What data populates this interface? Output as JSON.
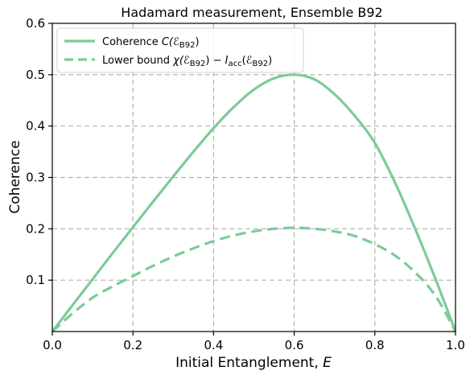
{
  "chart_data": {
    "type": "line",
    "title": "Hadamard measurement, Ensemble B92",
    "xlabel_text": "Initial Entanglement, ",
    "xlabel_var": "E",
    "ylabel": "Coherence",
    "xlim": [
      0.0,
      1.0
    ],
    "ylim": [
      0.0,
      0.6
    ],
    "x_ticks": [
      "0.0",
      "0.2",
      "0.4",
      "0.6",
      "0.8",
      "1.0"
    ],
    "y_ticks": [
      "0.1",
      "0.2",
      "0.3",
      "0.4",
      "0.5",
      "0.6"
    ],
    "grid": true,
    "legend_position": "top-left",
    "color": "#7ccb98",
    "series": [
      {
        "name": "Coherence C(ℰB92)",
        "style": "solid",
        "x": [
          0.0,
          0.05,
          0.1,
          0.15,
          0.2,
          0.25,
          0.3,
          0.35,
          0.4,
          0.45,
          0.5,
          0.55,
          0.6,
          0.65,
          0.7,
          0.75,
          0.8,
          0.85,
          0.9,
          0.95,
          1.0
        ],
        "y": [
          0.0,
          0.051,
          0.102,
          0.153,
          0.203,
          0.253,
          0.302,
          0.35,
          0.396,
          0.437,
          0.471,
          0.493,
          0.5,
          0.491,
          0.462,
          0.42,
          0.367,
          0.29,
          0.2,
          0.103,
          0.0
        ]
      },
      {
        "name": "Lower bound χ(ℰB92) − Iacc(ℰB92)",
        "style": "dashed",
        "x": [
          0.0,
          0.05,
          0.1,
          0.15,
          0.2,
          0.25,
          0.3,
          0.35,
          0.4,
          0.45,
          0.5,
          0.55,
          0.6,
          0.65,
          0.7,
          0.75,
          0.8,
          0.85,
          0.9,
          0.95,
          1.0
        ],
        "y": [
          0.0,
          0.035,
          0.066,
          0.088,
          0.108,
          0.128,
          0.146,
          0.162,
          0.176,
          0.187,
          0.195,
          0.2,
          0.202,
          0.2,
          0.195,
          0.186,
          0.17,
          0.148,
          0.115,
          0.07,
          0.0
        ]
      }
    ],
    "legend": {
      "entries": [
        {
          "prefix": "Coherence ",
          "math": "C(ℰ",
          "sub": "B92",
          "suffix": ")"
        },
        {
          "prefix": "Lower bound ",
          "math": "χ(ℰ",
          "sub": "B92",
          "suffix": ") − ",
          "math2": "I",
          "sub2": "acc",
          "suffix2": "(ℰ",
          "sub3": "B92",
          "suffix3": ")"
        }
      ]
    }
  }
}
